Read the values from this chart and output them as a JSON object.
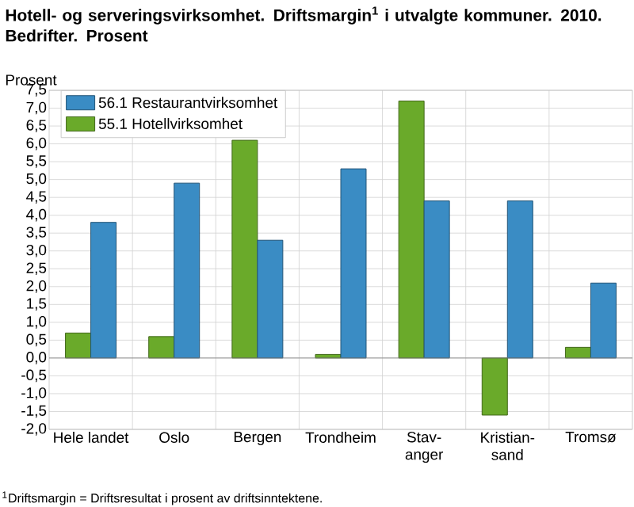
{
  "chart_data": {
    "type": "bar",
    "title": "Hotell- og serveringsvirksomhet. Driftsmargin$^{1}$ i utvalgte kommuner. 2010. Bedrifter. Prosent",
    "ylabel": "Prosent",
    "categories": [
      "Hele landet",
      "Oslo",
      "Bergen",
      "Trondheim",
      "Stav-anger",
      "Kristian-sand",
      "Tromsø"
    ],
    "series": [
      {
        "name": "55.1 Hotellvirksomhet",
        "color": "#6aaa2a",
        "values": [
          0.7,
          0.6,
          6.1,
          0.1,
          7.2,
          -1.6,
          0.3
        ]
      },
      {
        "name": "56.1 Restaurantvirksomhet",
        "color": "#3a8cc4",
        "values": [
          3.8,
          4.9,
          3.3,
          5.3,
          4.4,
          4.4,
          2.1
        ]
      }
    ],
    "ylim": [
      -2,
      7.5
    ],
    "yticks": [
      {
        "value": -2,
        "label": "-2,0"
      },
      {
        "value": -1.5,
        "label": "-1,5"
      },
      {
        "value": -1,
        "label": "-1,0"
      },
      {
        "value": -0.5,
        "label": "-0,5"
      },
      {
        "value": 0,
        "label": "0,0"
      },
      {
        "value": 0.5,
        "label": "0,5"
      },
      {
        "value": 1,
        "label": "1,0"
      },
      {
        "value": 1.5,
        "label": "1,5"
      },
      {
        "value": 2,
        "label": "2,0"
      },
      {
        "value": 2.5,
        "label": "2,5"
      },
      {
        "value": 3,
        "label": "3,0"
      },
      {
        "value": 3.5,
        "label": "3,5"
      },
      {
        "value": 4,
        "label": "4,0"
      },
      {
        "value": 4.5,
        "label": "4,5"
      },
      {
        "value": 5,
        "label": "5,0"
      },
      {
        "value": 5.5,
        "label": "5,5"
      },
      {
        "value": 6,
        "label": "6,0"
      },
      {
        "value": 6.5,
        "label": "6,5"
      },
      {
        "value": 7,
        "label": "7,0"
      },
      {
        "value": 7.5,
        "label": "7,5"
      }
    ],
    "grid": true,
    "legend": "top left",
    "annotations": [
      "$^{1}$Driftsmargin = Driftsresultat i prosent av driftsinntektene."
    ]
  }
}
